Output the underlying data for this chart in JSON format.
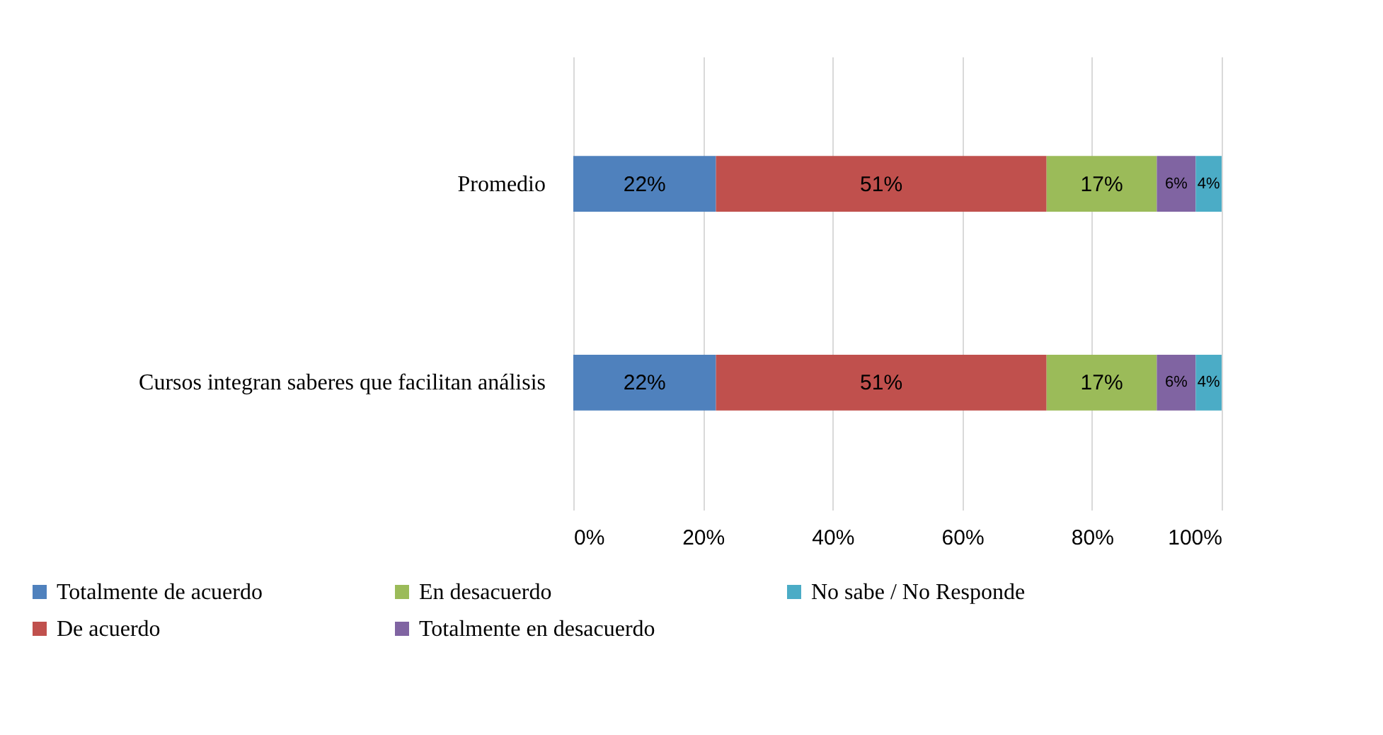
{
  "chart_data": {
    "type": "bar",
    "orientation": "horizontal",
    "stacked": true,
    "categories": [
      "Promedio",
      "Cursos integran saberes que facilitan análisis"
    ],
    "series": [
      {
        "name": "Totalmente de acuerdo",
        "color": "#4f81bd",
        "values": [
          22,
          22
        ],
        "value_labels": [
          "22%",
          "22%"
        ]
      },
      {
        "name": "De acuerdo",
        "color": "#c0504d",
        "values": [
          51,
          51
        ],
        "value_labels": [
          "51%",
          "51%"
        ]
      },
      {
        "name": "En desacuerdo",
        "color": "#9bbb59",
        "values": [
          17,
          17
        ],
        "value_labels": [
          "17%",
          "17%"
        ]
      },
      {
        "name": "Totalmente en desacuerdo",
        "color": "#8064a2",
        "values": [
          6,
          6
        ],
        "value_labels": [
          "6%",
          "6%"
        ]
      },
      {
        "name": "No sabe / No Responde",
        "color": "#4bacc6",
        "values": [
          4,
          4
        ],
        "value_labels": [
          "4%",
          "4%"
        ]
      }
    ],
    "xlim": [
      0,
      100
    ],
    "xticks": [
      {
        "value": 0,
        "label": "0%"
      },
      {
        "value": 20,
        "label": "20%"
      },
      {
        "value": 40,
        "label": "40%"
      },
      {
        "value": 60,
        "label": "60%"
      },
      {
        "value": 80,
        "label": "80%"
      },
      {
        "value": 100,
        "label": "100%"
      }
    ],
    "grid": "x",
    "legend": "bottom"
  }
}
